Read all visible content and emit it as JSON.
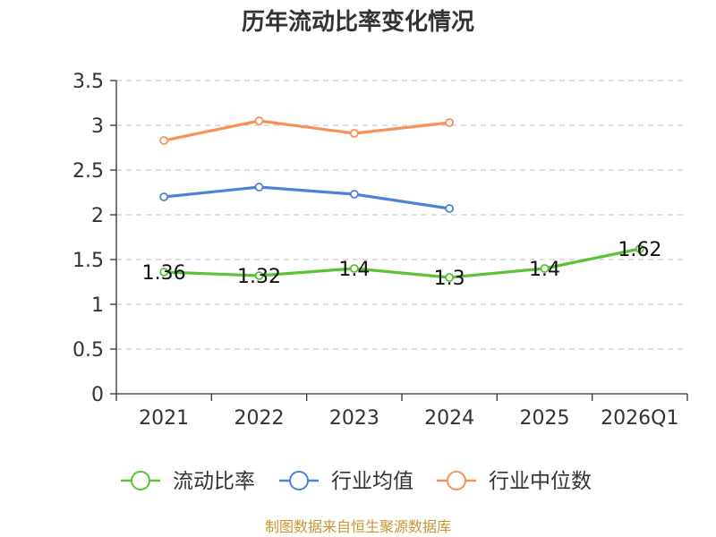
{
  "chart_data": {
    "type": "line",
    "title": "历年流动比率变化情况",
    "categories": [
      "2021",
      "2022",
      "2023",
      "2024",
      "2025",
      "2026Q1"
    ],
    "ylim": [
      0,
      3.5
    ],
    "yticks": [
      0,
      0.5,
      1,
      1.5,
      2,
      2.5,
      3,
      3.5
    ],
    "ytick_labels": [
      "0",
      "0.5",
      "1",
      "1.5",
      "2",
      "2.5",
      "3",
      "3.5"
    ],
    "grid": true,
    "series": [
      {
        "name": "流动比率",
        "color": "#5bc236",
        "values": [
          1.36,
          1.32,
          1.4,
          1.3,
          1.4,
          1.62
        ],
        "labels": [
          "1.36",
          "1.32",
          "1.4",
          "1.3",
          "1.4",
          "1.62"
        ]
      },
      {
        "name": "行业均值",
        "color": "#4e82d8",
        "values": [
          2.2,
          2.31,
          2.23,
          2.07,
          null,
          null
        ]
      },
      {
        "name": "行业中位数",
        "color": "#f7915a",
        "values": [
          2.83,
          3.05,
          2.91,
          3.03,
          null,
          null
        ]
      }
    ],
    "legend_position": "bottom",
    "source": "制图数据来自恒生聚源数据库"
  }
}
